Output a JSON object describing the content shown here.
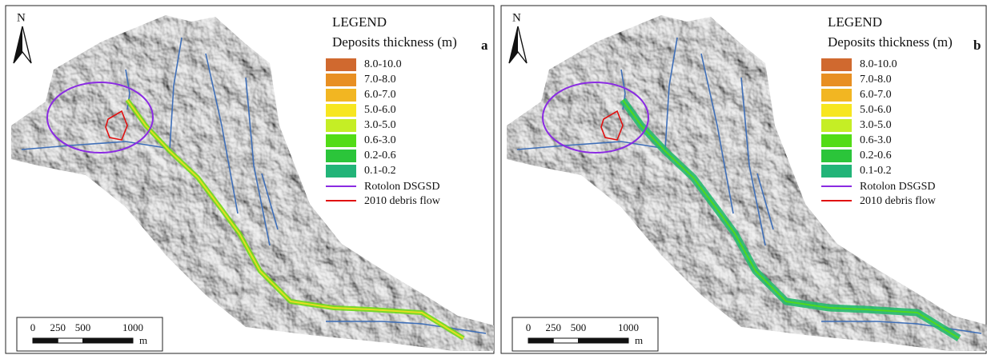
{
  "panels": [
    {
      "label": "a",
      "north": "N",
      "legend": {
        "title": "LEGEND",
        "subtitle": "Deposits thickness (m)",
        "classes": [
          {
            "label": "8.0-10.0",
            "color": "#d0692f"
          },
          {
            "label": "7.0-8.0",
            "color": "#e88f22"
          },
          {
            "label": "6.0-7.0",
            "color": "#f2b622"
          },
          {
            "label": "5.0-6.0",
            "color": "#f7e620"
          },
          {
            "label": "3.0-5.0",
            "color": "#c5ee25"
          },
          {
            "label": "0.6-3.0",
            "color": "#52dc16"
          },
          {
            "label": "0.2-0.6",
            "color": "#2bc53a"
          },
          {
            "label": "0.1-0.2",
            "color": "#22b478"
          }
        ],
        "lines": [
          {
            "label": "Rotolon DSGSD",
            "color": "#8a2be2"
          },
          {
            "label": "2010 debris flow",
            "color": "#e01010"
          }
        ]
      },
      "scale": {
        "ticks": [
          0,
          250,
          500,
          1000
        ],
        "unit": "m"
      }
    },
    {
      "label": "b",
      "north": "N",
      "legend": {
        "title": "LEGEND",
        "subtitle": "Deposits thickness (m)",
        "classes": [
          {
            "label": "8.0-10.0",
            "color": "#d0692f"
          },
          {
            "label": "7.0-8.0",
            "color": "#e88f22"
          },
          {
            "label": "6.0-7.0",
            "color": "#f2b622"
          },
          {
            "label": "5.0-6.0",
            "color": "#f7e620"
          },
          {
            "label": "3.0-5.0",
            "color": "#c5ee25"
          },
          {
            "label": "0.6-3.0",
            "color": "#52dc16"
          },
          {
            "label": "0.2-0.6",
            "color": "#2bc53a"
          },
          {
            "label": "0.1-0.2",
            "color": "#22b478"
          }
        ],
        "lines": [
          {
            "label": "Rotolon DSGSD",
            "color": "#8a2be2"
          },
          {
            "label": "2010 debris flow",
            "color": "#e01010"
          }
        ]
      },
      "scale": {
        "ticks": [
          0,
          250,
          500,
          1000
        ],
        "unit": "m"
      }
    }
  ]
}
